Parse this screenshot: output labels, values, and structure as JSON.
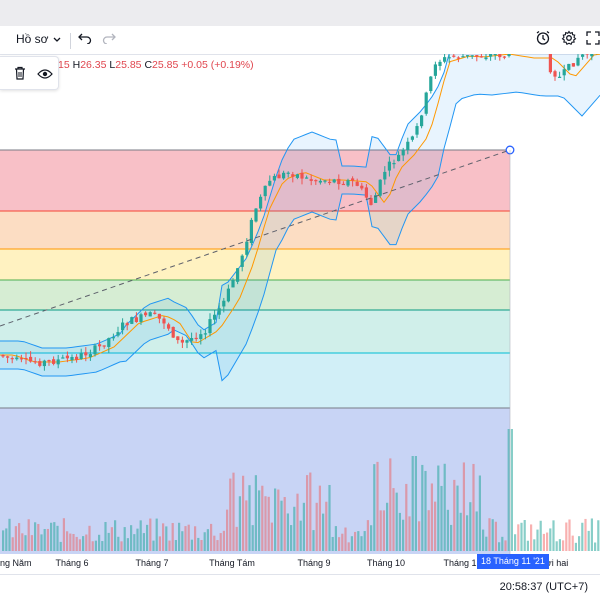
{
  "toolbar": {
    "profile_label": "Hồ sơ",
    "icons": [
      "chevron-down-icon",
      "undo-icon",
      "redo-icon",
      "alert-icon",
      "gear-icon",
      "fullscreen-icon"
    ]
  },
  "legend": {
    "o_value": "15",
    "h_key": "H",
    "h_value": "26.35",
    "l_key": "L",
    "l_value": "25.85",
    "c_key": "C",
    "c_value": "25.85",
    "change": "+0.05 (+0.19%)"
  },
  "float_tools": {
    "icons": [
      "trash-icon",
      "eye-icon"
    ]
  },
  "axis": {
    "ticks": [
      {
        "label": "ng Năm",
        "first": true
      },
      {
        "label": "Tháng 6"
      },
      {
        "label": "Tháng 7"
      },
      {
        "label": "Tháng Tám"
      },
      {
        "label": "Tháng 9"
      },
      {
        "label": "Tháng 10"
      },
      {
        "label": "Tháng 1"
      },
      {
        "label": "ười hai"
      }
    ],
    "crosshair_label": "18 Tháng 11 '21"
  },
  "clock": "20:58:37 (UTC+7)",
  "colors": {
    "up": "#26a69a",
    "down": "#ef5350",
    "bb_band": "#2196f3",
    "bb_fill": "rgba(33,150,243,0.10)",
    "ma_line": "#ff9800",
    "crosshair": "#2962ff"
  },
  "chart_data": {
    "type": "candlestick",
    "fibonacci_bands": [
      {
        "color": "#f7b5bd"
      },
      {
        "color": "#fbd7b9"
      },
      {
        "color": "#fff0b6"
      },
      {
        "color": "#cfeacb"
      },
      {
        "color": "#c8ece6"
      },
      {
        "color": "#c9ecf6"
      },
      {
        "color": "#e2e2e9"
      }
    ],
    "fibonacci_line_colors": [
      "#787b86",
      "#f44336",
      "#ff9800",
      "#4caf50",
      "#089981",
      "#00bcd4",
      "#787b86",
      "#787b86"
    ],
    "trendline": "dashed",
    "volume_series": "bar"
  }
}
